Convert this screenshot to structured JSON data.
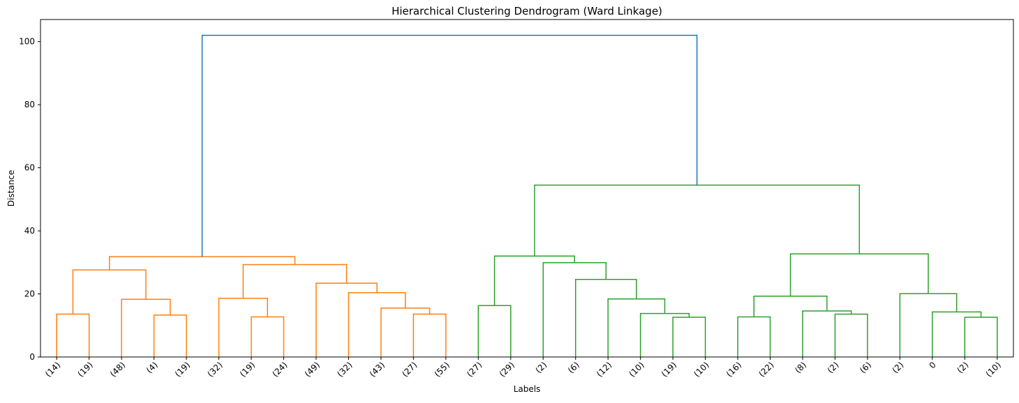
{
  "chart_data": {
    "type": "dendrogram",
    "title": "Hierarchical Clustering Dendrogram (Ward Linkage)",
    "xlabel": "Labels",
    "ylabel": "Distance",
    "ylim": [
      0,
      107
    ],
    "yticks": [
      0,
      20,
      40,
      60,
      80,
      100
    ],
    "grid": false,
    "colors": {
      "cluster_1": "#ff7f0e",
      "cluster_2": "#2ca02c",
      "root": "#1f77b4"
    },
    "leaf_labels": [
      "(14)",
      "(19)",
      "(48)",
      "(4)",
      "(19)",
      "(32)",
      "(19)",
      "(24)",
      "(49)",
      "(32)",
      "(43)",
      "(27)",
      "(55)",
      "(27)",
      "(29)",
      "(2)",
      "(6)",
      "(12)",
      "(10)",
      "(19)",
      "(10)",
      "(16)",
      "(22)",
      "(8)",
      "(2)",
      "(6)",
      "(2)",
      "0",
      "(2)",
      "(10)"
    ],
    "merges": [
      {
        "left": 0,
        "right": 1,
        "height": 13.6,
        "color": "cluster_1"
      },
      {
        "left": 3,
        "right": 4,
        "height": 13.3,
        "color": "cluster_1"
      },
      {
        "left": 2,
        "right": "m1",
        "height": 18.3,
        "color": "cluster_1"
      },
      {
        "left": "m0",
        "right": "m2",
        "height": 27.6,
        "color": "cluster_1"
      },
      {
        "left": 6,
        "right": 7,
        "height": 12.7,
        "color": "cluster_1"
      },
      {
        "left": 5,
        "right": "m4",
        "height": 18.6,
        "color": "cluster_1"
      },
      {
        "left": 11,
        "right": 12,
        "height": 13.6,
        "color": "cluster_1"
      },
      {
        "left": 10,
        "right": "m6",
        "height": 15.5,
        "color": "cluster_1"
      },
      {
        "left": 9,
        "right": "m7",
        "height": 20.4,
        "color": "cluster_1"
      },
      {
        "left": 8,
        "right": "m8",
        "height": 23.4,
        "color": "cluster_1"
      },
      {
        "left": "m5",
        "right": "m9",
        "height": 29.3,
        "color": "cluster_1"
      },
      {
        "left": "m3",
        "right": "m10",
        "height": 31.8,
        "color": "cluster_1"
      },
      {
        "left": 13,
        "right": 14,
        "height": 16.3,
        "color": "cluster_2"
      },
      {
        "left": 19,
        "right": 20,
        "height": 12.6,
        "color": "cluster_2"
      },
      {
        "left": 18,
        "right": "m13",
        "height": 13.8,
        "color": "cluster_2"
      },
      {
        "left": 17,
        "right": "m14",
        "height": 18.4,
        "color": "cluster_2"
      },
      {
        "left": 16,
        "right": "m15",
        "height": 24.6,
        "color": "cluster_2"
      },
      {
        "left": 15,
        "right": "m16",
        "height": 29.9,
        "color": "cluster_2"
      },
      {
        "left": "m12",
        "right": "m17",
        "height": 32.0,
        "color": "cluster_2"
      },
      {
        "left": 21,
        "right": 22,
        "height": 12.7,
        "color": "cluster_2"
      },
      {
        "left": 24,
        "right": 25,
        "height": 13.6,
        "color": "cluster_2"
      },
      {
        "left": 23,
        "right": "m20",
        "height": 14.6,
        "color": "cluster_2"
      },
      {
        "left": "m19",
        "right": "m21",
        "height": 19.3,
        "color": "cluster_2"
      },
      {
        "left": 28,
        "right": 29,
        "height": 12.6,
        "color": "cluster_2"
      },
      {
        "left": 27,
        "right": "m23",
        "height": 14.3,
        "color": "cluster_2"
      },
      {
        "left": 26,
        "right": "m24",
        "height": 20.1,
        "color": "cluster_2"
      },
      {
        "left": "m22",
        "right": "m25",
        "height": 32.7,
        "color": "cluster_2"
      },
      {
        "left": "m18",
        "right": "m26",
        "height": 54.5,
        "color": "cluster_2"
      },
      {
        "left": "m11",
        "right": "m27",
        "height": 102.0,
        "color": "root"
      }
    ]
  }
}
